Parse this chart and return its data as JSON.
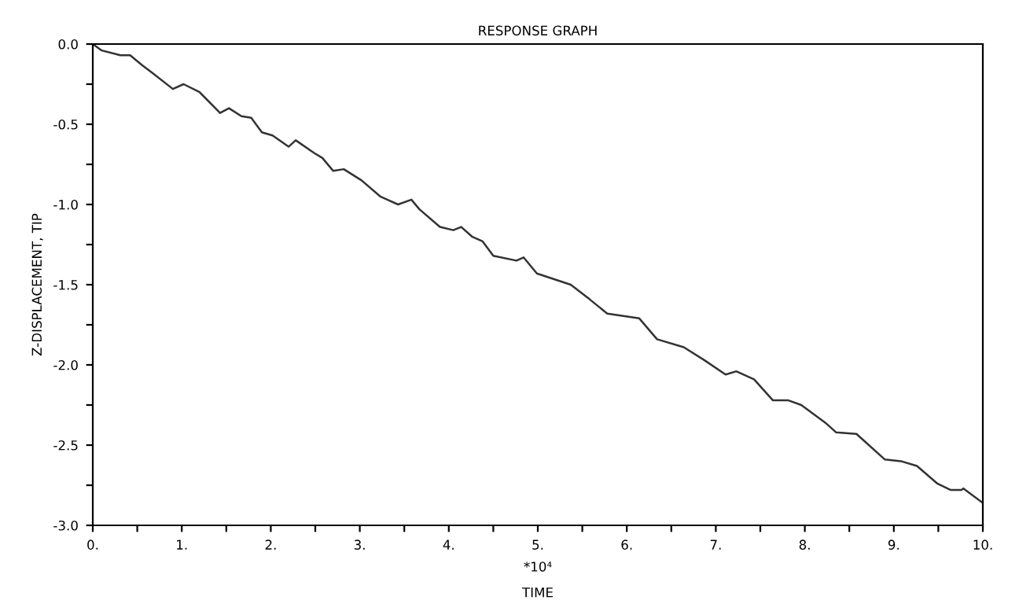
{
  "chart_data": {
    "type": "line",
    "title": "RESPONSE GRAPH",
    "xlabel": "TIME",
    "ylabel": "Z-DISPLACEMENT, TIP",
    "annotations": [
      "*10⁴"
    ],
    "xlim": [
      0,
      10
    ],
    "ylim": [
      -3.0,
      0.0
    ],
    "xticks": [
      {
        "value": 0,
        "label": "0."
      },
      {
        "value": 0.5,
        "label": null
      },
      {
        "value": 1,
        "label": "1."
      },
      {
        "value": 1.5,
        "label": null
      },
      {
        "value": 2,
        "label": "2."
      },
      {
        "value": 2.5,
        "label": null
      },
      {
        "value": 3,
        "label": "3."
      },
      {
        "value": 3.5,
        "label": null
      },
      {
        "value": 4,
        "label": "4."
      },
      {
        "value": 4.5,
        "label": null
      },
      {
        "value": 5,
        "label": "5."
      },
      {
        "value": 5.5,
        "label": null
      },
      {
        "value": 6,
        "label": "6."
      },
      {
        "value": 6.5,
        "label": null
      },
      {
        "value": 7,
        "label": "7."
      },
      {
        "value": 7.5,
        "label": null
      },
      {
        "value": 8,
        "label": "8."
      },
      {
        "value": 8.5,
        "label": null
      },
      {
        "value": 9,
        "label": "9."
      },
      {
        "value": 9.5,
        "label": null
      },
      {
        "value": 10,
        "label": "10."
      }
    ],
    "yticks": [
      {
        "value": -3.0,
        "label": "-3.0"
      },
      {
        "value": -2.75,
        "label": null
      },
      {
        "value": -2.5,
        "label": "-2.5"
      },
      {
        "value": -2.25,
        "label": null
      },
      {
        "value": -2.0,
        "label": "-2.0"
      },
      {
        "value": -1.75,
        "label": null
      },
      {
        "value": -1.5,
        "label": "-1.5"
      },
      {
        "value": -1.25,
        "label": null
      },
      {
        "value": -1.0,
        "label": "-1.0"
      },
      {
        "value": -0.75,
        "label": null
      },
      {
        "value": -0.5,
        "label": "-0.5"
      },
      {
        "value": -0.25,
        "label": null
      },
      {
        "value": 0.0,
        "label": "0.0"
      }
    ],
    "grid": false,
    "legend": false,
    "marker": "none",
    "line_style": "solid",
    "series": [
      {
        "color": "#333333",
        "x": [
          0,
          0.1,
          0.31,
          0.42,
          0.55,
          0.67,
          0.9,
          1.02,
          1.2,
          1.43,
          1.53,
          1.67,
          1.78,
          1.9,
          2.02,
          2.2,
          2.28,
          2.49,
          2.58,
          2.7,
          2.82,
          3.02,
          3.23,
          3.43,
          3.58,
          3.67,
          3.9,
          4.05,
          4.14,
          4.26,
          4.38,
          4.5,
          4.76,
          4.84,
          4.99,
          5.37,
          5.58,
          5.78,
          6.14,
          6.34,
          6.64,
          6.87,
          7.11,
          7.23,
          7.43,
          7.64,
          7.81,
          7.96,
          8.23,
          8.35,
          8.58,
          8.9,
          9.08,
          9.26,
          9.49,
          9.64,
          9.76,
          9.78,
          10.0
        ],
        "values": [
          0,
          -0.04,
          -0.07,
          -0.07,
          -0.13,
          -0.18,
          -0.28,
          -0.25,
          -0.3,
          -0.43,
          -0.4,
          -0.45,
          -0.46,
          -0.55,
          -0.57,
          -0.64,
          -0.6,
          -0.68,
          -0.71,
          -0.79,
          -0.78,
          -0.85,
          -0.95,
          -1.0,
          -0.97,
          -1.03,
          -1.14,
          -1.16,
          -1.14,
          -1.2,
          -1.23,
          -1.32,
          -1.35,
          -1.33,
          -1.43,
          -1.5,
          -1.59,
          -1.68,
          -1.71,
          -1.84,
          -1.89,
          -1.97,
          -2.06,
          -2.04,
          -2.09,
          -2.22,
          -2.22,
          -2.25,
          -2.36,
          -2.42,
          -2.43,
          -2.59,
          -2.6,
          -2.63,
          -2.74,
          -2.78,
          -2.78,
          -2.77,
          -2.86
        ]
      }
    ]
  }
}
